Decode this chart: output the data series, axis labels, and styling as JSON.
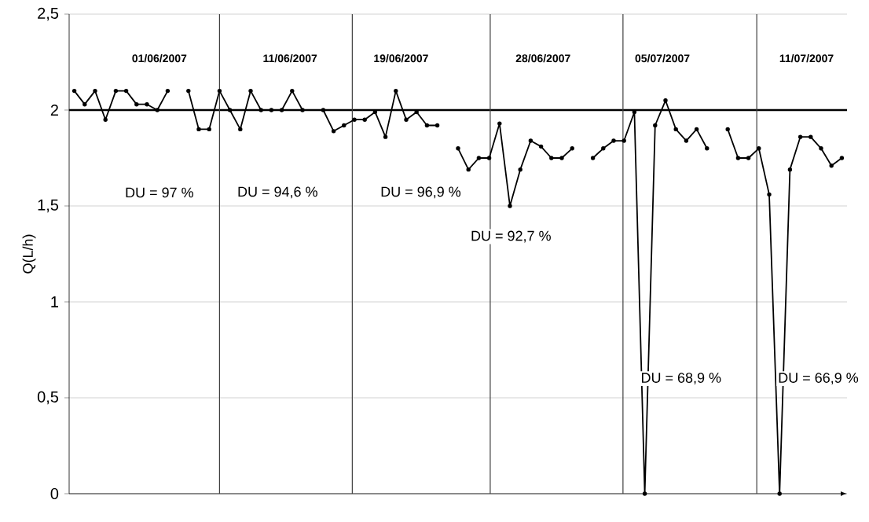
{
  "chart_data": {
    "type": "line",
    "ylabel": "Q(L/h)",
    "categories": [
      null,
      null,
      null,
      null,
      null,
      null,
      null,
      null,
      null,
      null,
      null,
      null,
      null,
      null,
      null,
      null,
      null,
      null,
      null,
      null,
      null,
      null,
      null,
      null,
      null,
      null,
      null,
      null,
      null,
      null,
      null,
      null,
      null,
      null,
      null,
      null,
      null,
      null,
      null,
      null,
      null,
      null,
      null,
      null,
      null,
      null,
      null,
      null,
      null,
      null,
      null,
      null,
      null,
      null,
      null,
      null,
      null,
      null,
      null,
      null,
      null,
      null,
      null,
      null,
      null,
      null,
      null,
      null,
      null,
      null,
      null,
      null,
      null,
      null,
      null
    ],
    "values": [
      2.1,
      2.03,
      2.1,
      1.95,
      2.1,
      2.1,
      2.03,
      2.03,
      2.0,
      2.1,
      null,
      2.1,
      1.9,
      1.9,
      2.1,
      2.0,
      1.9,
      2.1,
      2.0,
      2.0,
      2.0,
      2.1,
      2.0,
      null,
      2.0,
      1.89,
      1.92,
      1.95,
      1.95,
      1.99,
      1.86,
      2.1,
      1.95,
      1.99,
      1.92,
      1.92,
      null,
      1.8,
      1.69,
      1.75,
      1.75,
      1.93,
      1.5,
      1.69,
      1.84,
      1.81,
      1.75,
      1.75,
      1.8,
      null,
      1.75,
      1.8,
      1.84,
      1.84,
      1.99,
      0,
      1.92,
      2.05,
      1.9,
      1.84,
      1.9,
      1.8,
      null,
      1.9,
      1.75,
      1.75,
      1.8,
      1.56,
      0,
      1.69,
      1.86,
      1.86,
      1.8,
      1.71,
      1.75
    ],
    "color": "#000000",
    "marker": "circle",
    "grid": true,
    "ylim": [
      0,
      2.5
    ],
    "yticks": [
      0,
      {
        "value": 0.5,
        "label": "0,5"
      },
      1,
      {
        "value": 1.5,
        "label": "1,5"
      },
      2,
      {
        "value": 2.5,
        "label": "2,5"
      }
    ],
    "ref_lines": [
      {
        "axis": "y",
        "value": 2,
        "color": "#000000"
      }
    ],
    "annotations": [
      "01/06/2007",
      "11/06/2007",
      "19/06/2007",
      "28/06/2007",
      "05/07/2007",
      "11/07/2007",
      "DU = 97 %",
      "DU = 94,6 %",
      "DU = 96,9 %",
      "DU = 92,7 %",
      "DU = 68,9 %",
      "DU = 66,9 %"
    ]
  }
}
